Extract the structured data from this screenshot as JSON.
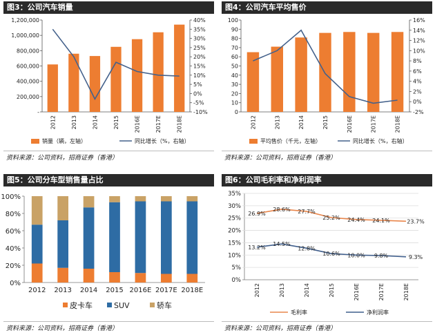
{
  "colors": {
    "orange": "#ED7D31",
    "blue": "#2E6CA4",
    "line": "#44618B",
    "gold": "#C9A266",
    "lineOrange": "#E9854A",
    "lineBlue": "#3F5E8C"
  },
  "panels": {
    "p1": {
      "title": "图3：公司汽车销量",
      "source": "资料来源：公司资料，招商证券（香港）"
    },
    "p2": {
      "title": "图4：公司汽车平均售价",
      "source": "资料来源：公司资料，招商证券（香港）"
    },
    "p3": {
      "title": "图5：公司分车型销售量占比",
      "source": "资料来源：公司资料，招商证券（香港）"
    },
    "p4": {
      "title": "图6：公司毛利率和净利润率",
      "source": "资料来源：公司资料，招商证券（香港）"
    }
  },
  "chart_data": [
    {
      "id": "sales",
      "type": "bar",
      "title": "公司汽车销量",
      "categories": [
        "2012",
        "2013",
        "2014",
        "2015",
        "2016E",
        "2017E",
        "2018E"
      ],
      "series": [
        {
          "name": "销量（辆，左轴）",
          "axis": "left",
          "kind": "bar",
          "values": [
            620000,
            760000,
            730000,
            850000,
            950000,
            1040000,
            1140000
          ]
        },
        {
          "name": "同比增长（%，右轴）",
          "axis": "right",
          "kind": "line",
          "values": [
            35,
            20,
            -3,
            17,
            12,
            10,
            9.5
          ]
        }
      ],
      "yleft": {
        "range": [
          0,
          1200000
        ],
        "ticks": [
          0,
          200000,
          400000,
          600000,
          800000,
          1000000,
          1200000
        ],
        "tick_labels": [
          "-",
          "200,000",
          "400,000",
          "600,000",
          "800,000",
          "1,000,000",
          "1,200,000"
        ]
      },
      "yright": {
        "range": [
          -10,
          40
        ],
        "ticks": [
          -10,
          -5,
          0,
          5,
          10,
          15,
          20,
          25,
          30,
          35,
          40
        ],
        "tick_labels": [
          "-10%",
          "-5%",
          "0%",
          "5%",
          "10%",
          "15%",
          "20%",
          "25%",
          "30%",
          "35%",
          "40%"
        ]
      },
      "legend": [
        "销量（辆，左轴）",
        "同比增长（%，右轴）"
      ]
    },
    {
      "id": "price",
      "type": "bar",
      "title": "公司汽车平均售价",
      "categories": [
        "2012",
        "2013",
        "2014",
        "2015",
        "2016E",
        "2017E",
        "2018E"
      ],
      "series": [
        {
          "name": "平均售价（千元，左轴）",
          "axis": "left",
          "kind": "bar",
          "values": [
            65,
            71,
            81,
            86,
            87,
            86,
            87
          ]
        },
        {
          "name": "同比增长（%，右轴）",
          "axis": "right",
          "kind": "line",
          "values": [
            8,
            10,
            14,
            5.5,
            1,
            -0.3,
            0.3
          ]
        }
      ],
      "yleft": {
        "range": [
          0,
          100
        ],
        "ticks": [
          0,
          10,
          20,
          30,
          40,
          50,
          60,
          70,
          80,
          90,
          100
        ],
        "tick_labels": [
          "0",
          "10",
          "20",
          "30",
          "40",
          "50",
          "60",
          "70",
          "80",
          "90",
          "100"
        ]
      },
      "yright": {
        "range": [
          -2,
          16
        ],
        "ticks": [
          -2,
          0,
          2,
          4,
          6,
          8,
          10,
          12,
          14,
          16
        ],
        "tick_labels": [
          "-2%",
          "0%",
          "2%",
          "4%",
          "6%",
          "8%",
          "10%",
          "12%",
          "14%",
          "16%"
        ]
      },
      "legend": [
        "平均售价（千元，左轴）",
        "同比增长（%，右轴）"
      ]
    },
    {
      "id": "mix",
      "type": "bar",
      "title": "公司分车型销售量占比",
      "stacked": true,
      "categories": [
        "2012",
        "2013",
        "2014",
        "2015",
        "2016E",
        "2017E",
        "2018E"
      ],
      "series": [
        {
          "name": "皮卡车",
          "values": [
            22,
            17,
            16,
            12,
            11,
            10,
            10
          ]
        },
        {
          "name": "SUV",
          "values": [
            45,
            55,
            71,
            81,
            83,
            84,
            84
          ]
        },
        {
          "name": "轿车",
          "values": [
            33,
            28,
            13,
            7,
            6,
            6,
            6
          ]
        }
      ],
      "yaxis": {
        "range": [
          0,
          100
        ],
        "ticks": [
          0,
          20,
          40,
          60,
          80,
          100
        ],
        "tick_labels": [
          "0%",
          "20%",
          "40%",
          "60%",
          "80%",
          "100%"
        ]
      },
      "legend": [
        "皮卡车",
        "SUV",
        "轿车"
      ]
    },
    {
      "id": "margin",
      "type": "line",
      "title": "公司毛利率和净利润率",
      "categories": [
        "2012",
        "2013",
        "2014",
        "2015",
        "2016E",
        "2017E",
        "2018E"
      ],
      "series": [
        {
          "name": "毛利率",
          "values": [
            26.9,
            28.6,
            27.7,
            25.2,
            24.4,
            24.1,
            23.7
          ],
          "labels": [
            "26.9%",
            "28.6%",
            "27.7%",
            "25.2%",
            "24.4%",
            "24.1%",
            "23.7%"
          ]
        },
        {
          "name": "净利润率",
          "values": [
            13.2,
            14.5,
            12.8,
            10.6,
            10.0,
            9.8,
            9.3
          ],
          "labels": [
            "13.2%",
            "14.5%",
            "12.8%",
            "10.6%",
            "10.0%",
            "9.8%",
            "9.3%"
          ]
        }
      ],
      "yaxis": {
        "range": [
          0,
          35
        ],
        "ticks": [
          0,
          5,
          10,
          15,
          20,
          25,
          30,
          35
        ],
        "tick_labels": [
          "0%",
          "5%",
          "10%",
          "15%",
          "20%",
          "25%",
          "30%",
          "35%"
        ]
      },
      "legend": [
        "毛利率",
        "净利润率"
      ]
    }
  ]
}
